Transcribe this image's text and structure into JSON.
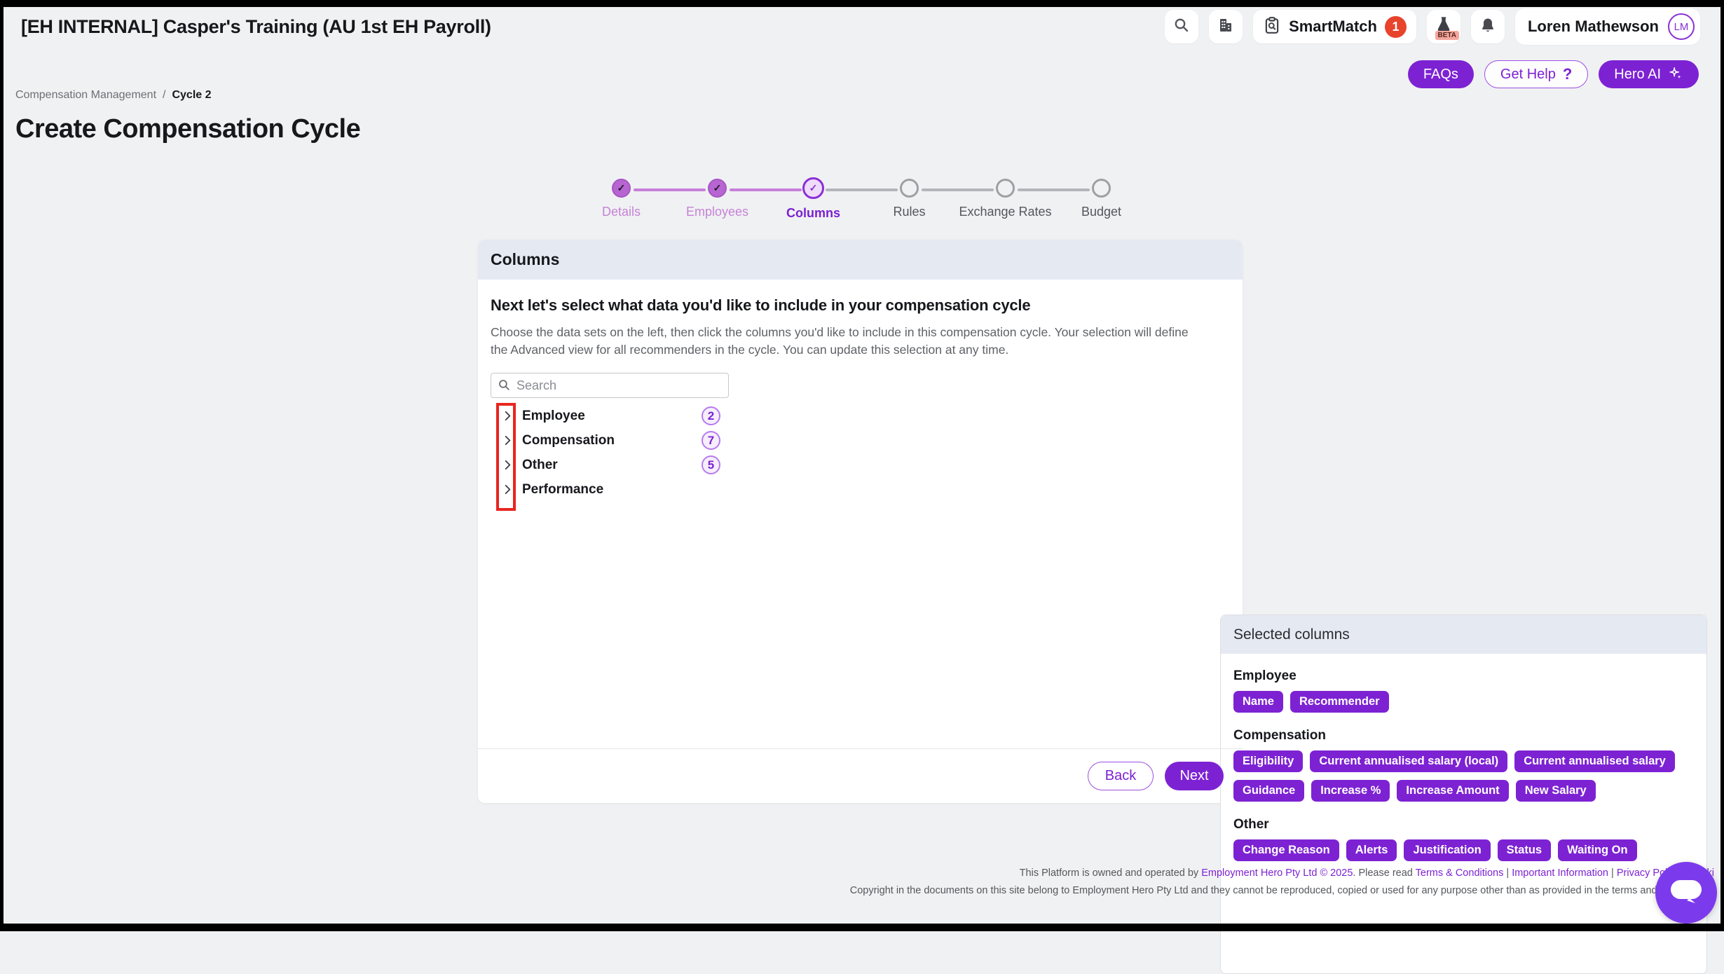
{
  "window": {
    "title": "[EH INTERNAL] Casper's Training (AU 1st EH Payroll)"
  },
  "topbar": {
    "smartmatch": {
      "label": "SmartMatch",
      "badge": "1"
    },
    "beta_tag": "BETA",
    "user": {
      "name": "Loren Mathewson",
      "initials": "LM"
    }
  },
  "help_buttons": {
    "faqs": "FAQs",
    "get_help": "Get Help",
    "qmark": "?",
    "hero_ai": "Hero AI"
  },
  "breadcrumb": {
    "parent": "Compensation Management",
    "separator": "/",
    "current": "Cycle 2"
  },
  "page": {
    "title": "Create Compensation Cycle"
  },
  "stepper": {
    "steps": [
      {
        "label": "Details",
        "state": "completed"
      },
      {
        "label": "Employees",
        "state": "completed"
      },
      {
        "label": "Columns",
        "state": "current"
      },
      {
        "label": "Rules",
        "state": "upcoming"
      },
      {
        "label": "Exchange Rates",
        "state": "upcoming"
      },
      {
        "label": "Budget",
        "state": "upcoming"
      }
    ]
  },
  "card": {
    "header": "Columns",
    "heading": "Next let's select what data you'd like to include in your compensation cycle",
    "description": "Choose the data sets on the left, then click the columns you'd like to include in this compensation cycle. Your selection will define the Advanced view for all recommenders in the cycle. You can update this selection at any time.",
    "search_placeholder": "Search",
    "datasets": [
      {
        "label": "Employee",
        "count": "2"
      },
      {
        "label": "Compensation",
        "count": "7"
      },
      {
        "label": "Other",
        "count": "5"
      },
      {
        "label": "Performance",
        "count": null
      }
    ],
    "selected": {
      "header": "Selected columns",
      "groups": [
        {
          "name": "Employee",
          "chips": [
            "Name",
            "Recommender"
          ]
        },
        {
          "name": "Compensation",
          "chips": [
            "Eligibility",
            "Current annualised salary (local)",
            "Current annualised salary",
            "Guidance",
            "Increase %",
            "Increase Amount",
            "New Salary"
          ]
        },
        {
          "name": "Other",
          "chips": [
            "Change Reason",
            "Alerts",
            "Justification",
            "Status",
            "Waiting On"
          ]
        }
      ]
    },
    "back_label": "Back",
    "next_label": "Next"
  },
  "footer": {
    "line1_parts": [
      {
        "text": "This Platform is owned and operated by ",
        "link": false
      },
      {
        "text": "Employment Hero Pty Ltd © 2025",
        "link": true
      },
      {
        "text": ". Please read ",
        "link": false
      },
      {
        "text": "Terms & Conditions",
        "link": true
      },
      {
        "text": " | ",
        "link": false
      },
      {
        "text": "Important Information",
        "link": true
      },
      {
        "text": " | ",
        "link": false
      },
      {
        "text": "Privacy Policy",
        "link": true
      },
      {
        "text": " | ",
        "link": false
      },
      {
        "text": "Cooki",
        "link": true
      }
    ],
    "line2": "Copyright in the documents on this site belong to Employment Hero Pty Ltd and they cannot be reproduced, copied or used for any purpose other than as provided in the terms and conditions o"
  },
  "colors": {
    "accent_purple": "#7d22d3",
    "badge_red": "#e8432c",
    "annotation_red": "#e8251f",
    "header_band": "#e5eaf2"
  }
}
